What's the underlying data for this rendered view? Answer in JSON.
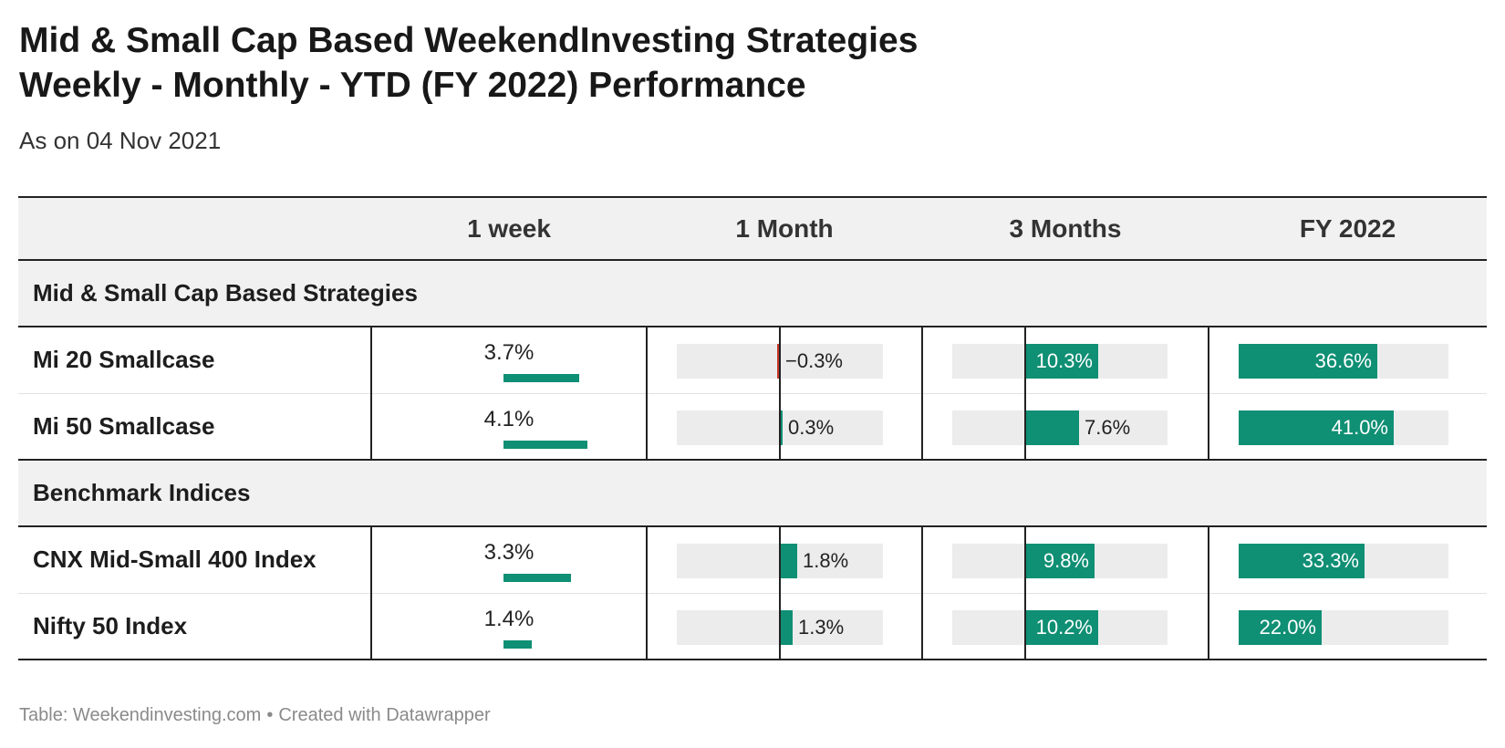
{
  "title_line1": "Mid & Small Cap Based WeekendInvesting Strategies",
  "title_line2": "Weekly - Monthly - YTD (FY 2022) Performance",
  "subtitle": "As on 04 Nov 2021",
  "footer": {
    "source": "Table: Weekendinvesting.com",
    "separator": "•",
    "credit": "Created with Datawrapper"
  },
  "colors": {
    "positive": "#0f8f74",
    "negative": "#c8392e",
    "track": "#ececec"
  },
  "chart_data": {
    "type": "table",
    "columns": [
      "",
      "1 week",
      "1 Month",
      "3 Months",
      "FY 2022"
    ],
    "groups": [
      {
        "name": "Mid & Small Cap Based Strategies",
        "rows": [
          {
            "name": "Mi 20 Smallcase",
            "week": 3.7,
            "month": -0.3,
            "three_months": 10.3,
            "fy2022": 36.6,
            "labels": [
              "3.7%",
              "−0.3%",
              "10.3%",
              "36.6%"
            ]
          },
          {
            "name": "Mi 50 Smallcase",
            "week": 4.1,
            "month": 0.3,
            "three_months": 7.6,
            "fy2022": 41.0,
            "labels": [
              "4.1%",
              "0.3%",
              "7.6%",
              "41.0%"
            ]
          }
        ]
      },
      {
        "name": "Benchmark Indices",
        "rows": [
          {
            "name": "CNX Mid-Small 400 Index",
            "week": 3.3,
            "month": 1.8,
            "three_months": 9.8,
            "fy2022": 33.3,
            "labels": [
              "3.3%",
              "1.8%",
              "9.8%",
              "33.3%"
            ]
          },
          {
            "name": "Nifty 50 Index",
            "week": 1.4,
            "month": 1.3,
            "three_months": 10.2,
            "fy2022": 22.0,
            "labels": [
              "1.4%",
              "1.3%",
              "10.2%",
              "22.0%"
            ]
          }
        ]
      }
    ]
  }
}
